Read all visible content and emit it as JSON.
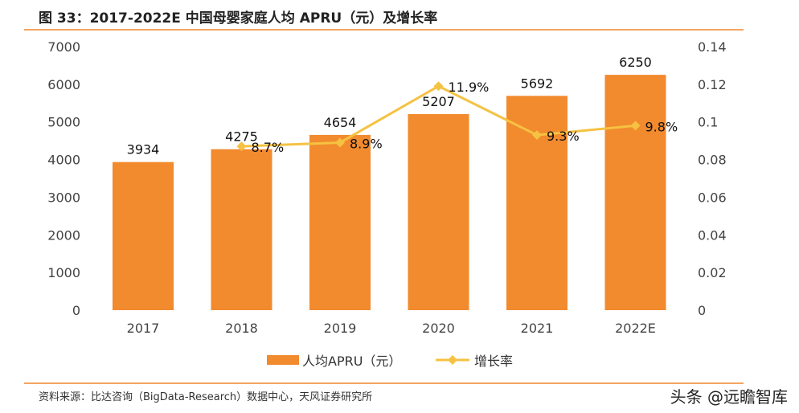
{
  "title": "图 33：2017-2022E 中国母婴家庭人均 APRU（元）及增长率",
  "source": "资料来源：比达咨询（BigData-Research）数据中心，天风证券研究所",
  "watermark": "头条 @远瞻智库",
  "colors": {
    "bar": "#F28A2E",
    "line": "#F5C242",
    "rule": "#F4A460"
  },
  "chart_data": {
    "type": "bar+line",
    "categories": [
      "2017",
      "2018",
      "2019",
      "2020",
      "2021",
      "2022E"
    ],
    "series": [
      {
        "name": "人均APRU（元）",
        "type": "bar",
        "axis": "left",
        "values": [
          3934,
          4275,
          4654,
          5207,
          5692,
          6250
        ],
        "labels": [
          "3934",
          "4275",
          "4654",
          "5207",
          "5692",
          "6250"
        ]
      },
      {
        "name": "增长率",
        "type": "line",
        "axis": "right",
        "values": [
          null,
          0.087,
          0.089,
          0.119,
          0.093,
          0.098
        ],
        "labels": [
          "",
          "8.7%",
          "8.9%",
          "11.9%",
          "9.3%",
          "9.8%"
        ]
      }
    ],
    "ylim_left": [
      0,
      7000
    ],
    "yticks_left": [
      "0",
      "1000",
      "2000",
      "3000",
      "4000",
      "5000",
      "6000",
      "7000"
    ],
    "ylim_right": [
      0,
      0.14
    ],
    "yticks_right": [
      "0",
      "0.02",
      "0.04",
      "0.06",
      "0.08",
      "0.1",
      "0.12",
      "0.14"
    ],
    "grid": false,
    "legend": "bottom"
  }
}
